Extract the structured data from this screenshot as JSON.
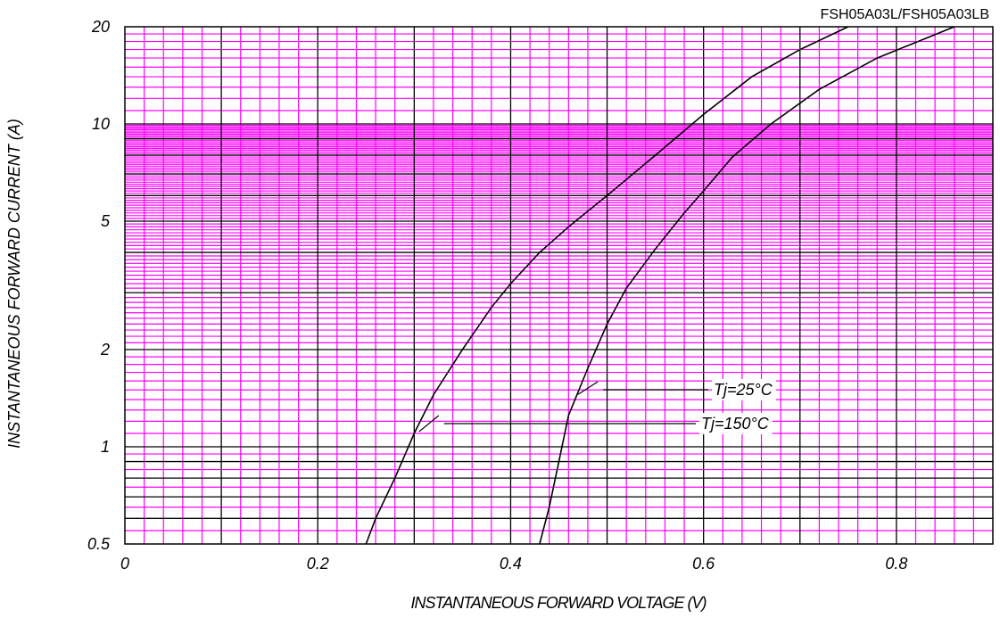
{
  "chart_data": {
    "type": "line",
    "title": "FSH05A03L/FSH05A03LB",
    "xlabel": "INSTANTANEOUS FORWARD VOLTAGE (V)",
    "ylabel": "INSTANTANEOUS FORWARD CURRENT (A)",
    "xlim": [
      0,
      0.9
    ],
    "ylim": [
      0.5,
      20
    ],
    "yscale": "log",
    "grid": true,
    "x_ticks": [
      "0",
      "0.2",
      "0.4",
      "0.6",
      "0.8"
    ],
    "x_tick_values": [
      0,
      0.2,
      0.4,
      0.6,
      0.8
    ],
    "y_ticks": [
      "0.5",
      "1",
      "2",
      "5",
      "10",
      "20"
    ],
    "y_tick_values": [
      0.5,
      1,
      2,
      5,
      10,
      20
    ],
    "series": [
      {
        "name": "Tj=150°C",
        "x": [
          0.25,
          0.26,
          0.28,
          0.3,
          0.32,
          0.35,
          0.38,
          0.4,
          0.43,
          0.46,
          0.5,
          0.55,
          0.6,
          0.65,
          0.7,
          0.75
        ],
        "y": [
          0.5,
          0.6,
          0.8,
          1.1,
          1.45,
          2.0,
          2.7,
          3.2,
          4.0,
          4.8,
          6.0,
          8.0,
          10.7,
          14.0,
          17.0,
          20.0
        ]
      },
      {
        "name": "Tj=25°C",
        "x": [
          0.43,
          0.44,
          0.45,
          0.46,
          0.48,
          0.5,
          0.52,
          0.55,
          0.58,
          0.6,
          0.63,
          0.67,
          0.72,
          0.78,
          0.86
        ],
        "y": [
          0.5,
          0.65,
          0.9,
          1.25,
          1.75,
          2.4,
          3.1,
          4.1,
          5.3,
          6.2,
          7.9,
          10.0,
          12.8,
          16.0,
          20.0
        ]
      }
    ],
    "annotations": [
      {
        "text": "Tj=25°C",
        "series": "Tj=25°C",
        "at_x": 0.47,
        "at_y": 1.5
      },
      {
        "text": "Tj=150°C",
        "series": "Tj=150°C",
        "at_x": 0.305,
        "at_y": 1.15
      }
    ],
    "colors": {
      "minor_grid": "#ff00ff",
      "major_grid": "#000000",
      "curves": "#000000"
    }
  }
}
